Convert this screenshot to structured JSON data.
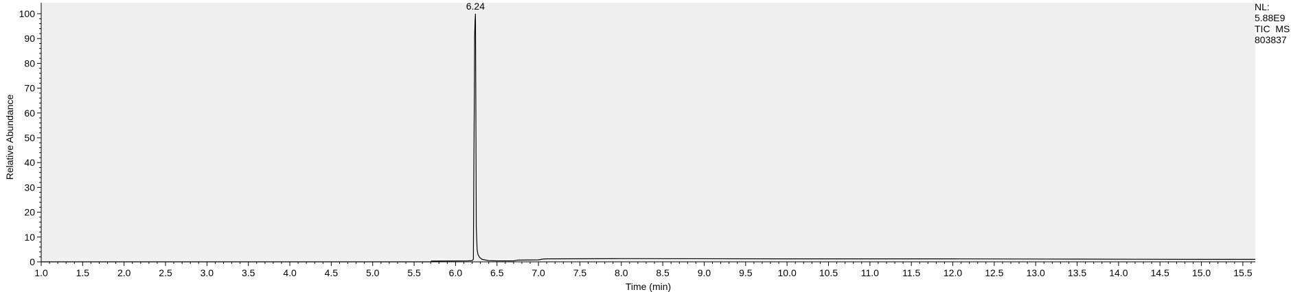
{
  "chart_data": {
    "type": "line",
    "xlabel": "Time (min)",
    "ylabel": "Relative Abundance",
    "xlim": [
      1.0,
      15.65
    ],
    "ylim": [
      0,
      100
    ],
    "x_ticks": [
      "1.0",
      "1.5",
      "2.0",
      "2.5",
      "3.0",
      "3.5",
      "4.0",
      "4.5",
      "5.0",
      "5.5",
      "6.0",
      "6.5",
      "7.0",
      "7.5",
      "8.0",
      "8.5",
      "9.0",
      "9.5",
      "10.0",
      "10.5",
      "11.0",
      "11.5",
      "12.0",
      "12.5",
      "13.0",
      "13.5",
      "14.0",
      "14.5",
      "15.0",
      "15.5"
    ],
    "y_ticks": [
      "0",
      "10",
      "20",
      "30",
      "40",
      "50",
      "60",
      "70",
      "80",
      "90",
      "100"
    ],
    "grid": false,
    "peak_annotation": {
      "x": 6.24,
      "y": 100,
      "label": "6.24"
    },
    "series": [
      {
        "x": [
          1.0,
          5.7,
          5.71,
          6.15,
          6.2,
          6.215,
          6.22,
          6.225,
          6.23,
          6.235,
          6.24,
          6.245,
          6.25,
          6.26,
          6.27,
          6.29,
          6.32,
          6.4,
          6.5,
          6.7,
          6.75,
          7.0,
          7.05,
          7.1,
          8.0,
          10.0,
          12.0,
          13.5,
          15.0,
          15.65
        ],
        "y": [
          0.0,
          0.0,
          0.3,
          0.4,
          0.5,
          1.0,
          35.0,
          60.0,
          91.0,
          97.0,
          100.0,
          60.0,
          14.0,
          5.0,
          3.0,
          1.8,
          1.0,
          0.5,
          0.4,
          0.4,
          0.7,
          0.8,
          1.1,
          1.2,
          1.3,
          1.2,
          1.2,
          1.1,
          1.0,
          1.0
        ]
      }
    ]
  },
  "info": {
    "nl_label": "NL:",
    "nl_value": "5.88E9",
    "filter": "TIC  MS",
    "sample": "803837"
  }
}
